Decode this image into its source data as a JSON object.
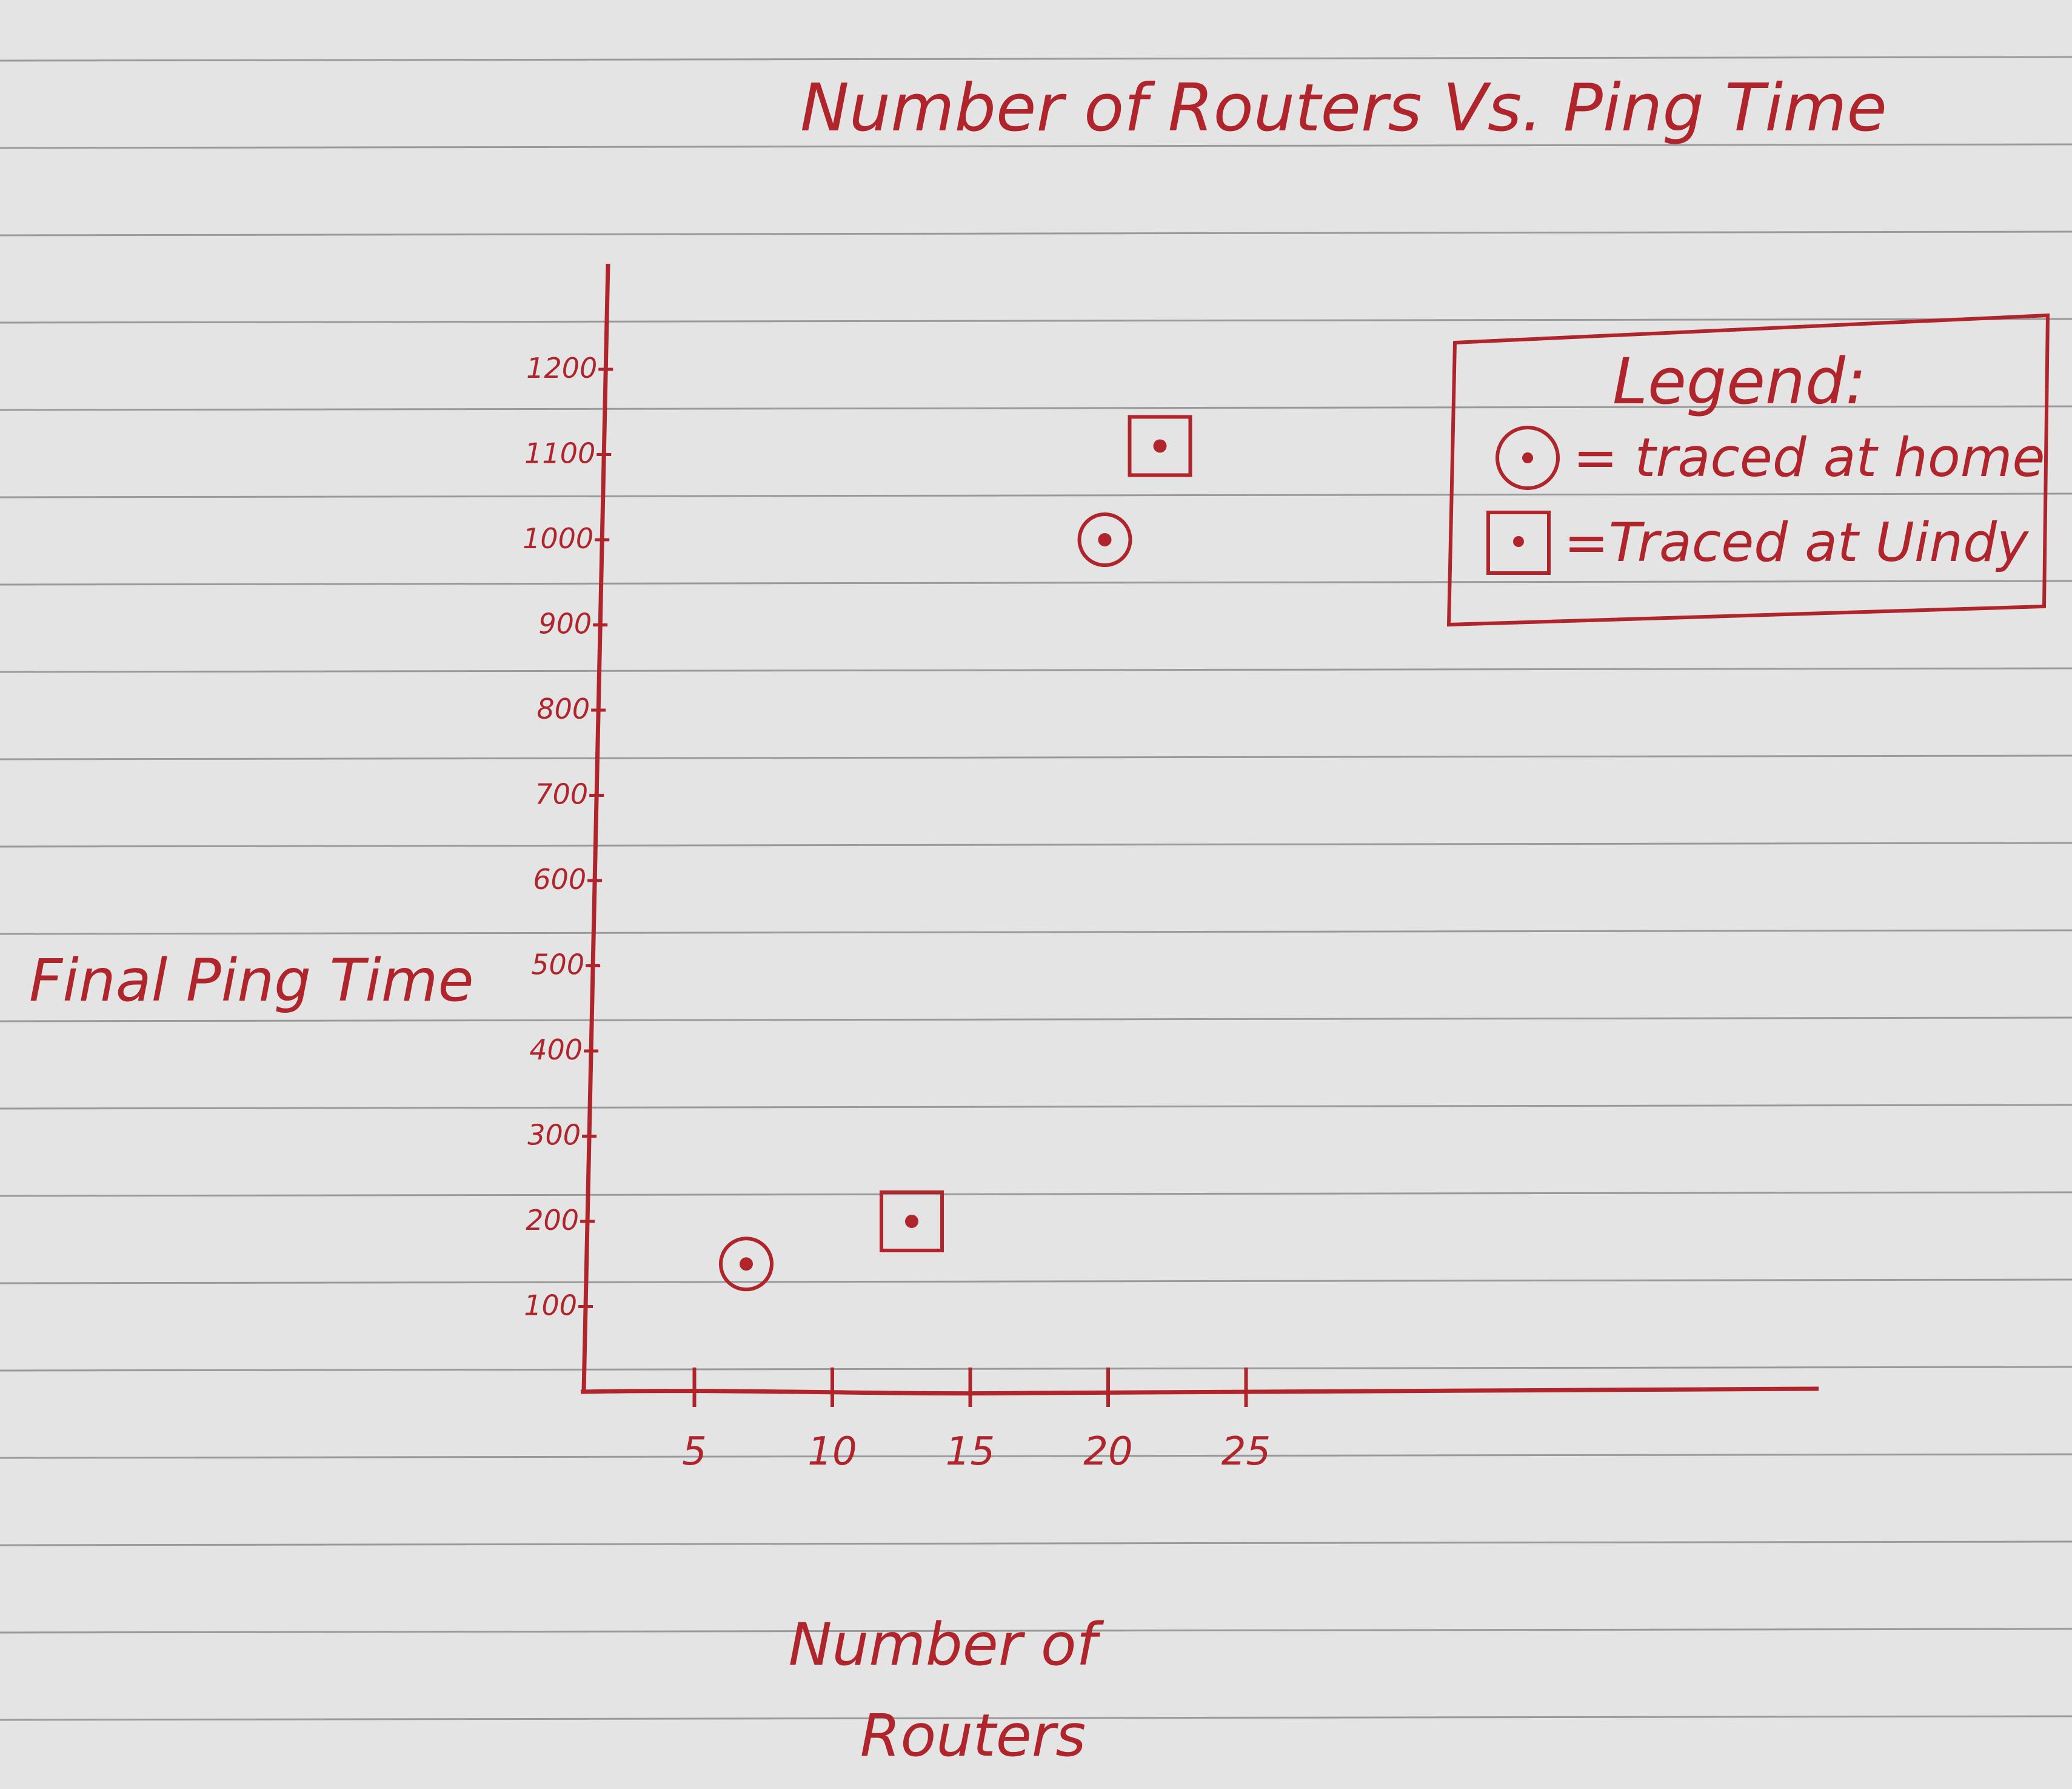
{
  "chart_data": {
    "type": "scatter",
    "title": "Number of Routers Vs. Ping Time",
    "xlabel": "Number of Routers",
    "ylabel": "Final Ping Time",
    "x_ticks": [
      "5",
      "10",
      "15",
      "20",
      "25"
    ],
    "y_ticks": [
      "100",
      "200",
      "300",
      "400",
      "500",
      "600",
      "700",
      "800",
      "900",
      "1000",
      "1100",
      "1200"
    ],
    "xlim": [
      0,
      45
    ],
    "ylim": [
      0,
      1200
    ],
    "grid": false,
    "legend": {
      "title": "Legend:",
      "placement": "top-right",
      "entries": [
        {
          "marker": "circle-dot",
          "label": "= traced at home"
        },
        {
          "marker": "square-dot",
          "label": "=Traced at Uindy"
        }
      ]
    },
    "series": [
      {
        "marker": "circle-dot",
        "points": [
          {
            "x": 6,
            "y": 150
          },
          {
            "x": 19,
            "y": 1000
          }
        ]
      },
      {
        "marker": "square-dot",
        "points": [
          {
            "x": 12,
            "y": 200
          },
          {
            "x": 21,
            "y": 1110
          }
        ]
      }
    ]
  },
  "colors": {
    "ink": "#b0242c",
    "paper": "#e4e4e4",
    "rule": "#7a7c7f"
  }
}
